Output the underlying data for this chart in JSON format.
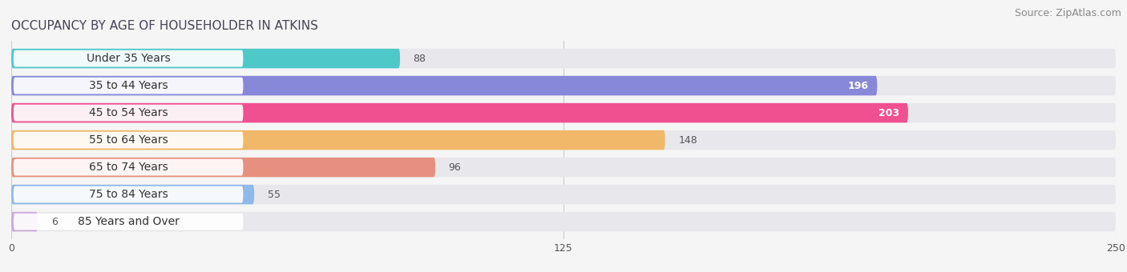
{
  "title": "OCCUPANCY BY AGE OF HOUSEHOLDER IN ATKINS",
  "source": "Source: ZipAtlas.com",
  "categories": [
    "Under 35 Years",
    "35 to 44 Years",
    "45 to 54 Years",
    "55 to 64 Years",
    "65 to 74 Years",
    "75 to 84 Years",
    "85 Years and Over"
  ],
  "values": [
    88,
    196,
    203,
    148,
    96,
    55,
    6
  ],
  "bar_colors": [
    "#4ec8c8",
    "#8888d8",
    "#f05090",
    "#f0b868",
    "#e89080",
    "#90b8e8",
    "#c8a8d8"
  ],
  "xlim": [
    0,
    250
  ],
  "xticks": [
    0,
    125,
    250
  ],
  "background_color": "#f5f5f5",
  "bar_bg_color": "#e8e8ec",
  "title_fontsize": 11,
  "source_fontsize": 9,
  "label_fontsize": 10,
  "value_fontsize": 9,
  "value_threshold_inside": 40
}
